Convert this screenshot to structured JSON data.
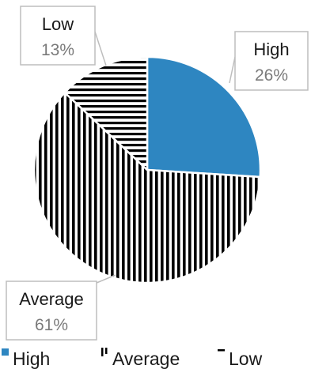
{
  "chart_data": {
    "type": "pie",
    "slices": [
      {
        "label": "High",
        "value": 26,
        "display": "26%",
        "color": "#2e86c1",
        "pattern": "solid"
      },
      {
        "label": "Average",
        "value": 61,
        "display": "61%",
        "color": "#000000",
        "pattern": "vertical-stripes"
      },
      {
        "label": "Low",
        "value": 13,
        "display": "13%",
        "color": "#000000",
        "pattern": "horizontal-stripes"
      }
    ],
    "legend_position": "bottom",
    "title": ""
  }
}
